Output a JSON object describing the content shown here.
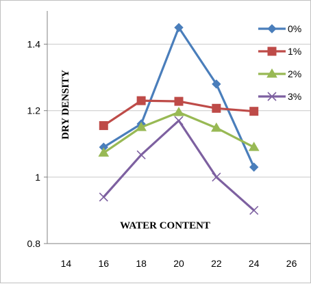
{
  "chart_data": {
    "type": "line",
    "title": "",
    "xlabel": "WATER CONTENT",
    "ylabel": "DRY DENSITY",
    "x": [
      16,
      18,
      20,
      22,
      24
    ],
    "xlim": [
      13,
      27
    ],
    "ylim": [
      0.8,
      1.5
    ],
    "xticks": [
      "14",
      "16",
      "18",
      "20",
      "22",
      "24",
      "26"
    ],
    "yticks": [
      "0.8",
      "1",
      "1.2",
      "1.4"
    ],
    "grid": true,
    "legend": "top-right",
    "series": [
      {
        "name": "0%",
        "values": [
          1.09,
          1.16,
          1.45,
          1.28,
          1.03
        ],
        "color": "#4a7ebb",
        "marker": "diamond"
      },
      {
        "name": "1%",
        "values": [
          1.155,
          1.23,
          1.228,
          1.207,
          1.198
        ],
        "color": "#be4b48",
        "marker": "square"
      },
      {
        "name": "2%",
        "values": [
          1.073,
          1.15,
          1.195,
          1.148,
          1.09
        ],
        "color": "#98b954",
        "marker": "triangle"
      },
      {
        "name": "3%",
        "values": [
          0.94,
          1.067,
          1.17,
          1.0,
          0.9
        ],
        "color": "#7d60a0",
        "marker": "x"
      }
    ]
  }
}
